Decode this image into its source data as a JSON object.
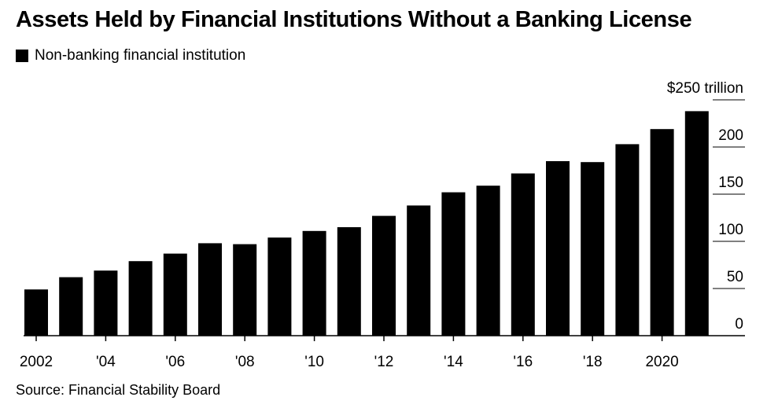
{
  "title": "Assets Held by Financial Institutions Without a Banking License",
  "legend": {
    "label": "Non-banking financial institution",
    "color": "#000000"
  },
  "source": "Source: Financial Stability Board",
  "chart_data": {
    "type": "bar",
    "categories": [
      "2002",
      "2003",
      "2004",
      "2005",
      "2006",
      "2007",
      "2008",
      "2009",
      "2010",
      "2011",
      "2012",
      "2013",
      "2014",
      "2015",
      "2016",
      "2017",
      "2018",
      "2019",
      "2020",
      "2021"
    ],
    "series": [
      {
        "name": "Non-banking financial institution",
        "color": "#000000",
        "values": [
          49,
          62,
          69,
          79,
          87,
          98,
          97,
          104,
          111,
          115,
          127,
          138,
          152,
          159,
          172,
          185,
          184,
          203,
          219,
          238
        ]
      }
    ],
    "x_tick_labels": [
      {
        "category": "2002",
        "label": "2002"
      },
      {
        "category": "2004",
        "label": "'04"
      },
      {
        "category": "2006",
        "label": "'06"
      },
      {
        "category": "2008",
        "label": "'08"
      },
      {
        "category": "2010",
        "label": "'10"
      },
      {
        "category": "2012",
        "label": "'12"
      },
      {
        "category": "2014",
        "label": "'14"
      },
      {
        "category": "2016",
        "label": "'16"
      },
      {
        "category": "2018",
        "label": "'18"
      },
      {
        "category": "2020",
        "label": "2020"
      }
    ],
    "y_ticks": [
      {
        "value": 250,
        "label": "$250 trillion"
      },
      {
        "value": 200,
        "label": "200"
      },
      {
        "value": 150,
        "label": "150"
      },
      {
        "value": 100,
        "label": "100"
      },
      {
        "value": 50,
        "label": "50"
      },
      {
        "value": 0,
        "label": "0"
      }
    ],
    "ylim": [
      0,
      250
    ],
    "grid": true,
    "y_axis_side": "right",
    "legend_position": "top-left"
  }
}
